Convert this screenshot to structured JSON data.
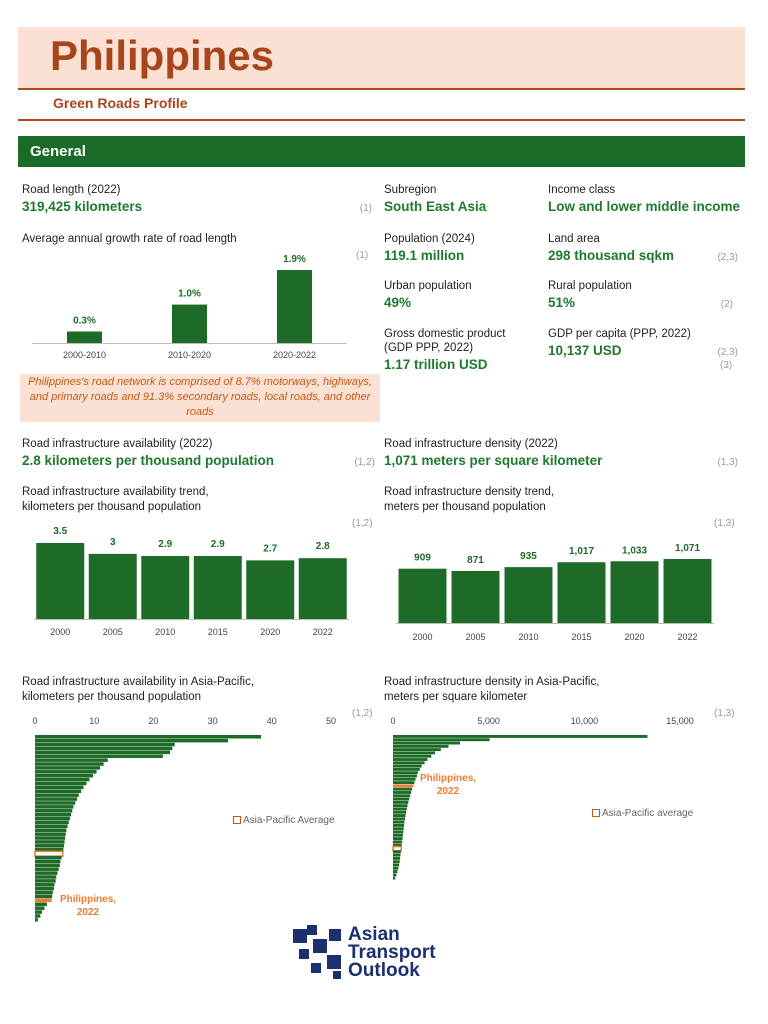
{
  "header": {
    "title": "Philippines",
    "subtitle": "Green Roads Profile"
  },
  "section": "General",
  "facts": {
    "road_length": {
      "label": "Road length (2022)",
      "value": "319,425 kilometers",
      "source": "(1)"
    },
    "subregion": {
      "label": "Subregion",
      "value": "South East Asia"
    },
    "income": {
      "label": "Income class",
      "value": "Low and lower middle income"
    },
    "population": {
      "label": "Population (2024)",
      "value": "119.1 million"
    },
    "land": {
      "label": "Land area",
      "value": "298  thousand sqkm",
      "source": "(2,3)"
    },
    "urban": {
      "label": "Urban population",
      "value": "49%"
    },
    "rural": {
      "label": "Rural population",
      "value": "51%",
      "source": "(2)"
    },
    "gdp": {
      "label": "Gross domestic product (GDP PPP, 2022)",
      "value": "1.17 trillion USD",
      "source": "(3)"
    },
    "gdppc": {
      "label": "GDP per capita (PPP, 2022)",
      "value": "10,137  USD",
      "source": "(2,3)"
    },
    "availability": {
      "label": "Road infrastructure availability (2022)",
      "value": "2.8 kilometers per thousand population",
      "source": "(1,2)"
    },
    "density": {
      "label": "Road infrastructure density (2022)",
      "value": "1,071 meters per square kilometer",
      "source": "(1,3)"
    }
  },
  "note": "Philippines's road network is comprised of 8.7% motorways, highways, and primary roads and 91.3% secondary roads, local roads, and other roads",
  "logo": "Asian Transport Outlook",
  "chart_data": [
    {
      "type": "bar",
      "title": "Average annual growth rate of road length",
      "source": "(1)",
      "categories": [
        "2000-2010",
        "2010-2020",
        "2020-2022"
      ],
      "values": [
        0.3,
        1.0,
        1.9
      ],
      "value_labels": [
        "0.3%",
        "1.0%",
        "1.9%"
      ],
      "color": "#1e6b28"
    },
    {
      "type": "bar",
      "title": "Road infrastructure availability trend, kilometers per thousand population",
      "source": "(1,2)",
      "categories": [
        "2000",
        "2005",
        "2010",
        "2015",
        "2020",
        "2022"
      ],
      "values": [
        3.5,
        3.0,
        2.9,
        2.9,
        2.7,
        2.8
      ],
      "color": "#1e6b28"
    },
    {
      "type": "bar",
      "title": "Road infrastructure density trend, meters per thousand population",
      "source": "(1,3)",
      "categories": [
        "2000",
        "2005",
        "2010",
        "2015",
        "2020",
        "2022"
      ],
      "values": [
        909,
        871,
        935,
        1017,
        1033,
        1071
      ],
      "value_labels": [
        "909",
        "871",
        "935",
        "1,017",
        "1,033",
        "1,071"
      ],
      "color": "#1e6b28"
    },
    {
      "type": "barh",
      "title": "Road infrastructure availability in Asia-Pacific, kilometers per thousand population",
      "source": "(1,2)",
      "xlim": [
        0,
        50
      ],
      "xticks": [
        0,
        10,
        20,
        30,
        40,
        50
      ],
      "values": [
        38.2,
        32.6,
        23.6,
        23.2,
        22.8,
        21.6,
        12.3,
        11.6,
        11.0,
        10.4,
        9.8,
        9.2,
        8.7,
        8.2,
        7.8,
        7.4,
        7.1,
        6.8,
        6.5,
        6.3,
        6.1,
        5.9,
        5.7,
        5.5,
        5.3,
        5.2,
        5.1,
        5.0,
        4.9,
        4.8,
        4.7,
        4.5,
        4.3,
        4.2,
        4.0,
        3.8,
        3.6,
        3.5,
        3.3,
        3.2,
        3.0,
        2.9,
        2.8,
        2.0,
        1.6,
        1.2,
        0.9,
        0.5
      ],
      "color": "#1e6b28",
      "highlight_color": "#ed7d31",
      "highlight_index": 42,
      "callout": "Philippines, 2022",
      "average_index": 30,
      "legend": "Asia-Pacific Average"
    },
    {
      "type": "barh",
      "title": "Road infrastructure density in Asia-Pacific, meters per square kilometer",
      "source": "(1,3)",
      "xlim": [
        0,
        15000
      ],
      "xticks": [
        0,
        {
          "value": 5000,
          "label": "5,000"
        },
        {
          "value": 10000,
          "label": "10,000"
        },
        {
          "value": 15000,
          "label": "15,000"
        }
      ],
      "values": [
        13300,
        5050,
        3500,
        2900,
        2500,
        2200,
        2000,
        1800,
        1650,
        1500,
        1400,
        1300,
        1250,
        1180,
        1120,
        1071,
        1000,
        950,
        900,
        850,
        800,
        760,
        720,
        690,
        660,
        630,
        600,
        580,
        560,
        540,
        520,
        500,
        480,
        460,
        430,
        410,
        390,
        370,
        350,
        320,
        280,
        230,
        180,
        120
      ],
      "color": "#1e6b28",
      "highlight_color": "#ed7d31",
      "highlight_index": 15,
      "callout": "Philippines, 2022",
      "average_index": 34,
      "legend": "Asia-Pacific average"
    }
  ]
}
